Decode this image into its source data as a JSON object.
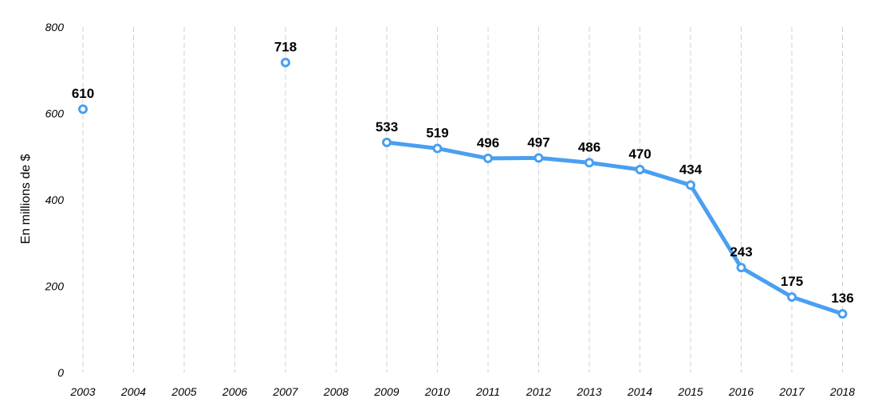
{
  "chart_data": {
    "type": "line",
    "title": "",
    "xlabel": "",
    "ylabel": "En millions de $",
    "categories": [
      "2003",
      "2004",
      "2005",
      "2006",
      "2007",
      "2008",
      "2009",
      "2010",
      "2011",
      "2012",
      "2013",
      "2014",
      "2015",
      "2016",
      "2017",
      "2018"
    ],
    "series": [
      {
        "values": [
          610,
          null,
          null,
          null,
          718,
          null,
          533,
          519,
          496,
          497,
          486,
          470,
          434,
          243,
          175,
          136
        ]
      }
    ],
    "ylim": [
      0,
      800
    ],
    "yticks": [
      "0",
      "200",
      "400",
      "600",
      "800"
    ],
    "grid": "vertical dashed",
    "color": "#4a9ff0",
    "marker_fill": "#ffffff"
  }
}
